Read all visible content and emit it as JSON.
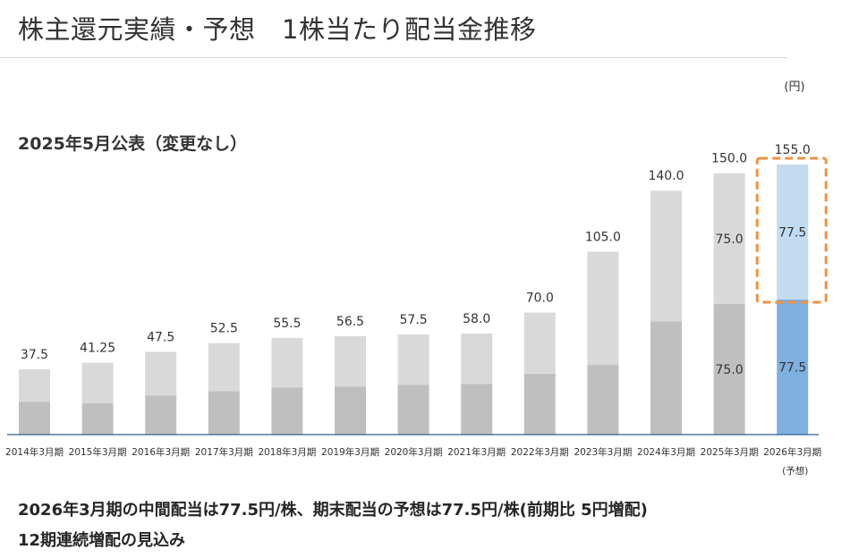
{
  "page": {
    "title": "株主還元実績・予想　1株当たり配当金推移"
  },
  "summary": {
    "line1": "2026年3月期の中間配当は77.5円/株、期末配当の予想は77.5円/株(前期比 5円増配)",
    "line2": "12期連続増配の見込み"
  },
  "colors": {
    "interim_actual": "#bfbfbf",
    "final_actual": "#d9d9d9",
    "interim_forecast": "#7eb0e0",
    "final_forecast": "#c2dbf1",
    "highlight": "#f0913f",
    "axis": "#2f5f8a"
  },
  "chart_data": {
    "type": "bar",
    "stacked": true,
    "title": "2025年5月公表（変更なし）",
    "unit_label": "(円)",
    "forecast_note": "(予想)",
    "categories": [
      "2014年3月期",
      "2015年3月期",
      "2016年3月期",
      "2017年3月期",
      "2018年3月期",
      "2019年3月期",
      "2020年3月期",
      "2021年3月期",
      "2022年3月期",
      "2023年3月期",
      "2024年3月期",
      "2025年3月期",
      "2026年3月期"
    ],
    "totals": [
      37.5,
      41.25,
      47.5,
      52.5,
      55.5,
      56.5,
      57.5,
      58.0,
      70.0,
      105.0,
      140.0,
      150.0,
      155.0
    ],
    "total_labels": [
      "37.5",
      "41.25",
      "47.5",
      "52.5",
      "55.5",
      "56.5",
      "57.5",
      "58.0",
      "70.0",
      "105.0",
      "140.0",
      "150.0",
      "155.0"
    ],
    "series": [
      {
        "name": "中間配当",
        "values": [
          18.75,
          18.0,
          22.5,
          25.0,
          27.0,
          27.5,
          28.5,
          29.0,
          35.0,
          40.0,
          65.0,
          75.0,
          77.5
        ]
      },
      {
        "name": "期末配当",
        "values": [
          18.75,
          23.25,
          25.0,
          27.5,
          28.5,
          29.0,
          29.0,
          29.0,
          35.0,
          65.0,
          75.0,
          75.0,
          77.5
        ]
      }
    ],
    "segment_labels": [
      {
        "index": 11,
        "lower": "75.0",
        "upper": "75.0"
      },
      {
        "index": 12,
        "lower": "77.5",
        "upper": "77.5"
      }
    ],
    "forecast_index": 12,
    "ylim": [
      0,
      160
    ]
  }
}
